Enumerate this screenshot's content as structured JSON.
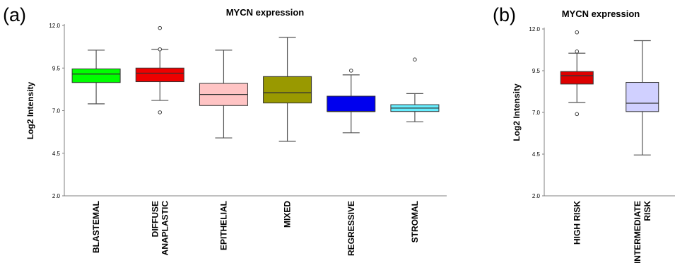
{
  "panels": [
    {
      "label": "(a)"
    },
    {
      "label": "(b)"
    }
  ],
  "chart_data": [
    {
      "type": "box",
      "title": "MYCN expression",
      "ylabel": "Log2 Intensity",
      "ylim": [
        2.0,
        12.0
      ],
      "yticks": [
        "2.0",
        "4.5",
        "7.0",
        "9.5",
        "12.0"
      ],
      "categories": [
        {
          "lines": [
            "BLASTEMAL"
          ],
          "min": 7.4,
          "q1": 8.65,
          "median": 9.15,
          "q3": 9.45,
          "max": 10.55,
          "outliers": [],
          "color": "#00ff00"
        },
        {
          "lines": [
            "DIFFUSE",
            "ANAPLASTIC"
          ],
          "min": 7.6,
          "q1": 8.7,
          "median": 9.2,
          "q3": 9.5,
          "max": 10.6,
          "outliers": [
            6.9,
            10.6,
            11.85
          ],
          "color": "#ee0000"
        },
        {
          "lines": [
            "EPITHELIAL"
          ],
          "min": 5.4,
          "q1": 7.3,
          "median": 7.95,
          "q3": 8.6,
          "max": 10.55,
          "outliers": [],
          "color": "#ffc4c4"
        },
        {
          "lines": [
            "MIXED"
          ],
          "min": 5.2,
          "q1": 7.45,
          "median": 8.05,
          "q3": 9.0,
          "max": 11.3,
          "outliers": [],
          "color": "#999900"
        },
        {
          "lines": [
            "REGRESSIVE"
          ],
          "min": 5.7,
          "q1": 6.95,
          "median": 6.95,
          "q3": 7.85,
          "max": 9.1,
          "outliers": [
            9.35
          ],
          "color": "#0000ee"
        },
        {
          "lines": [
            "STROMAL"
          ],
          "min": 6.35,
          "q1": 6.95,
          "median": 7.15,
          "q3": 7.35,
          "max": 8.0,
          "outliers": [
            10.0
          ],
          "color": "#66eeff"
        }
      ]
    },
    {
      "type": "box",
      "title": "MYCN expression",
      "ylabel": "Log2 Intensity",
      "ylim": [
        2.0,
        12.0
      ],
      "yticks": [
        "2.0",
        "4.5",
        "7.0",
        "9.5",
        "12.0"
      ],
      "categories": [
        {
          "lines": [
            "HIGH RISK"
          ],
          "min": 7.6,
          "q1": 8.7,
          "median": 9.2,
          "q3": 9.45,
          "max": 10.55,
          "outliers": [
            6.9,
            10.65,
            11.8
          ],
          "color": "#dd0000"
        },
        {
          "lines": [
            "INTERMEDIATE",
            "RISK"
          ],
          "min": 4.45,
          "q1": 7.05,
          "median": 7.55,
          "q3": 8.8,
          "max": 11.3,
          "outliers": [],
          "color": "#d0d0ff"
        }
      ]
    }
  ]
}
